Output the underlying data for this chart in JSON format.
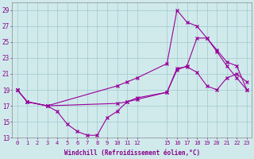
{
  "bg_color": "#d0eaec",
  "grid_color": "#a0c8cc",
  "line_color": "#990099",
  "xlabel": "Windchill (Refroidissement éolien,°C)",
  "ylim": [
    13,
    30
  ],
  "yticks": [
    13,
    15,
    17,
    19,
    21,
    23,
    25,
    27,
    29
  ],
  "xticks": [
    0,
    1,
    2,
    3,
    4,
    5,
    6,
    7,
    8,
    9,
    10,
    11,
    12,
    15,
    16,
    17,
    18,
    19,
    20,
    21,
    22,
    23
  ],
  "xlim": [
    -0.5,
    23.5
  ],
  "line1_x": [
    0,
    1,
    3,
    4,
    5,
    6,
    7,
    8,
    9,
    10,
    11,
    12,
    15,
    16,
    17,
    18,
    19,
    20,
    21,
    22,
    23
  ],
  "line1_y": [
    19.0,
    17.5,
    17.0,
    16.3,
    14.7,
    13.8,
    13.3,
    13.3,
    15.5,
    16.3,
    17.5,
    18.0,
    18.7,
    21.7,
    21.9,
    21.2,
    19.5,
    19.0,
    20.5,
    21.0,
    20.0
  ],
  "line2_x": [
    0,
    1,
    3,
    10,
    11,
    12,
    15,
    16,
    17,
    18,
    19,
    20,
    21,
    22,
    23
  ],
  "line2_y": [
    19.0,
    17.5,
    17.0,
    19.5,
    20.0,
    20.5,
    22.3,
    29.0,
    27.5,
    27.0,
    25.5,
    23.8,
    22.0,
    20.5,
    19.0
  ],
  "line3_x": [
    0,
    1,
    3,
    10,
    11,
    12,
    15,
    16,
    17,
    18,
    19,
    20,
    21,
    22,
    23
  ],
  "line3_y": [
    19.0,
    17.5,
    17.0,
    17.3,
    17.5,
    17.8,
    18.7,
    21.5,
    22.0,
    25.5,
    25.5,
    24.0,
    22.5,
    22.0,
    19.0
  ]
}
